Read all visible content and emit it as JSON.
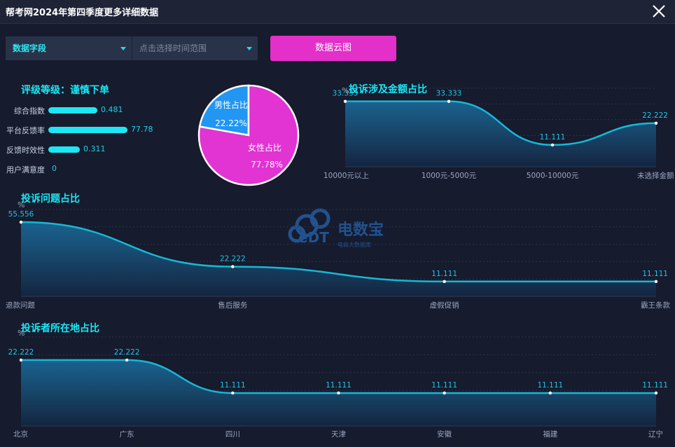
{
  "window": {
    "title": "帮考网2024年第四季度更多详细数据"
  },
  "toolbar": {
    "field_select": "数据字段",
    "time_select_placeholder": "点击选择时间范围",
    "cloud_button": "数据云图"
  },
  "rating": {
    "title": "评级等级：谨慎下单",
    "metrics": [
      {
        "label": "综合指数",
        "value": "0.481",
        "level": 0.481
      },
      {
        "label": "平台反馈率",
        "value": "77.78",
        "level": 0.7778
      },
      {
        "label": "反馈时效性",
        "value": "0.311",
        "level": 0.311
      },
      {
        "label": "用户满意度",
        "value": "0",
        "level": 0
      }
    ]
  },
  "gender_pie": {
    "slices": [
      {
        "label": "男性占比",
        "percent_text": "22.22%",
        "value": 22.22,
        "color": "#2196f3"
      },
      {
        "label": "女性占比",
        "percent_text": "77.78%",
        "value": 77.78,
        "color": "#e233d3"
      }
    ]
  },
  "watermark": {
    "brand": "电数宝",
    "sub": "电商大数据库",
    "logo_text": "eDT"
  },
  "chart_data": [
    {
      "type": "area",
      "title": "投诉涉及金额占比",
      "unit": "%",
      "categories": [
        "10000元以上",
        "1000元-5000元",
        "5000-10000元",
        "未选择金额"
      ],
      "values": [
        33.333,
        33.333,
        11.111,
        22.222
      ],
      "value_labels": [
        "33.333",
        "33.333",
        "11.111",
        "22.222"
      ],
      "color": "#18b7d6"
    },
    {
      "type": "area",
      "title": "投诉问题占比",
      "unit": "%",
      "categories": [
        "退款问题",
        "售后服务",
        "虚假促销",
        "霸王条款"
      ],
      "values": [
        55.556,
        22.222,
        11.111,
        11.111
      ],
      "value_labels": [
        "55.556",
        "22.222",
        "11.111",
        "11.111"
      ],
      "color": "#18b7d6"
    },
    {
      "type": "area",
      "title": "投诉者所在地占比",
      "unit": "%",
      "categories": [
        "北京",
        "广东",
        "四川",
        "天津",
        "安徽",
        "福建",
        "辽宁"
      ],
      "values": [
        22.222,
        22.222,
        11.111,
        11.111,
        11.111,
        11.111,
        11.111
      ],
      "value_labels": [
        "22.222",
        "22.222",
        "11.111",
        "11.111",
        "11.111",
        "11.111",
        "11.111"
      ],
      "color": "#18b7d6"
    }
  ]
}
